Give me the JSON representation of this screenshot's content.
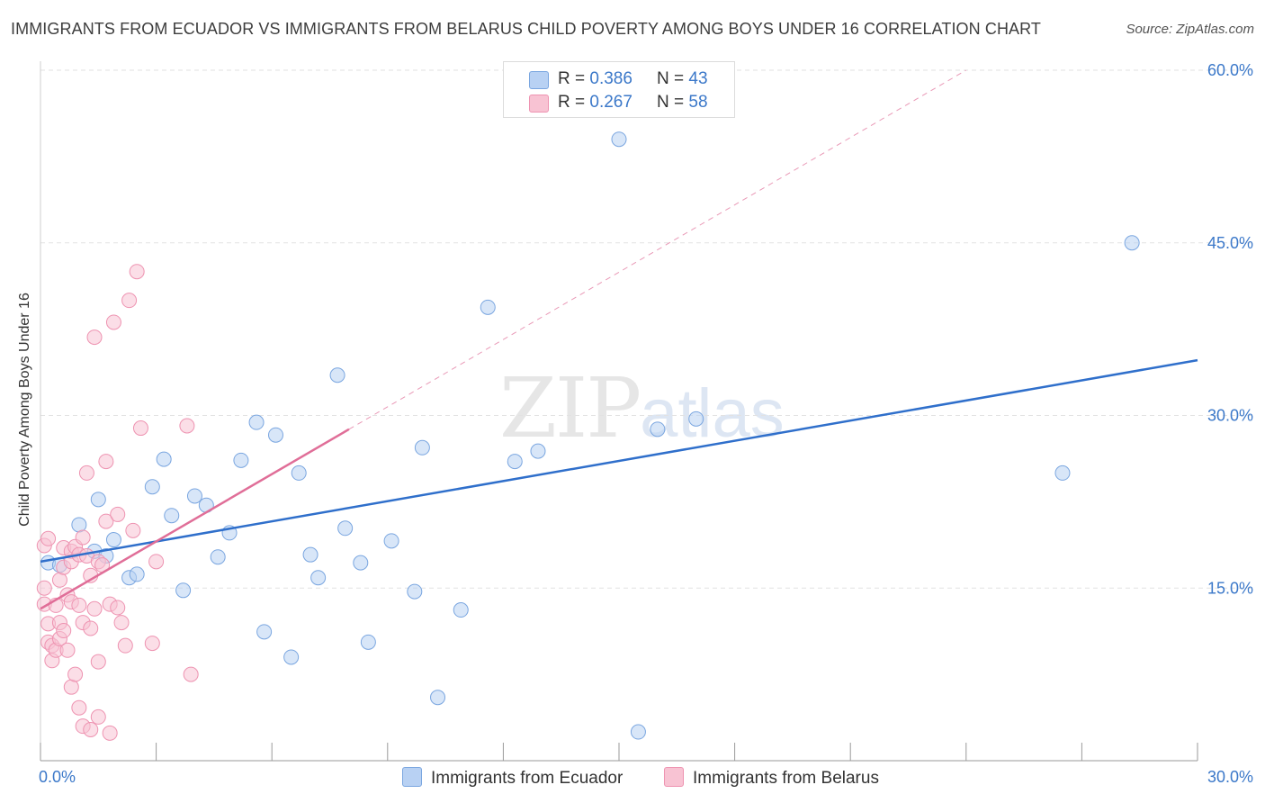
{
  "header": {
    "title": "IMMIGRANTS FROM ECUADOR VS IMMIGRANTS FROM BELARUS CHILD POVERTY AMONG BOYS UNDER 16 CORRELATION CHART",
    "source": "Source: ZipAtlas.com"
  },
  "watermark": {
    "zip": "ZIP",
    "atlas": "atlas"
  },
  "legend": {
    "ecuador": {
      "r_label": "R = ",
      "r_value": "0.386",
      "n_label": "N = ",
      "n_value": "43",
      "name": "Immigrants from Ecuador"
    },
    "belarus": {
      "r_label": "R = ",
      "r_value": "0.267",
      "n_label": "N = ",
      "n_value": "58",
      "name": "Immigrants from Belarus"
    }
  },
  "colors": {
    "ecuador_fill": "#b8d1f3",
    "ecuador_stroke": "#7aa6e0",
    "ecuador_line": "#2f6fcb",
    "belarus_fill": "#f8c3d3",
    "belarus_stroke": "#ee93b1",
    "belarus_line": "#e06e98",
    "axis_label": "#3b78c9",
    "grid": "#e2e2e2"
  },
  "chart_data": {
    "type": "scatter",
    "title": "IMMIGRANTS FROM ECUADOR VS IMMIGRANTS FROM BELARUS CHILD POVERTY AMONG BOYS UNDER 16 CORRELATION CHART",
    "xlabel": "",
    "ylabel": "Child Poverty Among Boys Under 16",
    "xlim": [
      0,
      30
    ],
    "ylim": [
      0,
      60
    ],
    "x_tick_labels": [
      "0.0%",
      "30.0%"
    ],
    "y_ticks": [
      15,
      30,
      45,
      60
    ],
    "y_tick_labels": [
      "15.0%",
      "30.0%",
      "45.0%",
      "60.0%"
    ],
    "grid": true,
    "legend_position": "top-center",
    "series": [
      {
        "name": "Immigrants from Ecuador",
        "color": "#b8d1f3",
        "trend": {
          "x": [
            0,
            30
          ],
          "y": [
            17.3,
            34.8
          ],
          "style": "solid"
        },
        "points": [
          [
            0.2,
            17.2
          ],
          [
            0.5,
            17.0
          ],
          [
            1.0,
            20.5
          ],
          [
            1.4,
            18.2
          ],
          [
            1.5,
            22.7
          ],
          [
            1.7,
            17.8
          ],
          [
            1.9,
            19.2
          ],
          [
            2.3,
            15.9
          ],
          [
            2.5,
            16.2
          ],
          [
            2.9,
            23.8
          ],
          [
            3.2,
            26.2
          ],
          [
            3.4,
            21.3
          ],
          [
            3.7,
            14.8
          ],
          [
            4.0,
            23.0
          ],
          [
            4.3,
            22.2
          ],
          [
            4.6,
            17.7
          ],
          [
            4.9,
            19.8
          ],
          [
            5.2,
            26.1
          ],
          [
            5.6,
            29.4
          ],
          [
            5.8,
            11.2
          ],
          [
            6.1,
            28.3
          ],
          [
            6.5,
            9.0
          ],
          [
            6.7,
            25.0
          ],
          [
            7.0,
            17.9
          ],
          [
            7.2,
            15.9
          ],
          [
            7.7,
            33.5
          ],
          [
            7.9,
            20.2
          ],
          [
            8.3,
            17.2
          ],
          [
            8.5,
            10.3
          ],
          [
            9.1,
            19.1
          ],
          [
            9.7,
            14.7
          ],
          [
            9.9,
            27.2
          ],
          [
            10.3,
            5.5
          ],
          [
            10.9,
            13.1
          ],
          [
            11.6,
            39.4
          ],
          [
            12.3,
            26.0
          ],
          [
            12.9,
            26.9
          ],
          [
            15.0,
            54.0
          ],
          [
            15.5,
            2.5
          ],
          [
            16.0,
            28.8
          ],
          [
            17.0,
            29.7
          ],
          [
            26.5,
            25.0
          ],
          [
            28.3,
            45.0
          ]
        ]
      },
      {
        "name": "Immigrants from Belarus",
        "color": "#f8c3d3",
        "trend": {
          "x": [
            0,
            8.0
          ],
          "y": [
            13.2,
            28.8
          ],
          "style": "solid",
          "extension": {
            "x": [
              8.0,
              24.0
            ],
            "y": [
              28.8,
              60.0
            ],
            "style": "dashed"
          }
        },
        "points": [
          [
            0.1,
            18.7
          ],
          [
            0.1,
            15.0
          ],
          [
            0.1,
            13.6
          ],
          [
            0.2,
            19.3
          ],
          [
            0.2,
            11.9
          ],
          [
            0.2,
            10.3
          ],
          [
            0.3,
            10.0
          ],
          [
            0.3,
            8.7
          ],
          [
            0.4,
            13.5
          ],
          [
            0.4,
            9.6
          ],
          [
            0.5,
            10.6
          ],
          [
            0.5,
            12.0
          ],
          [
            0.5,
            15.7
          ],
          [
            0.6,
            16.8
          ],
          [
            0.6,
            11.3
          ],
          [
            0.6,
            18.5
          ],
          [
            0.7,
            14.4
          ],
          [
            0.7,
            9.6
          ],
          [
            0.8,
            18.2
          ],
          [
            0.8,
            13.8
          ],
          [
            0.8,
            17.3
          ],
          [
            0.8,
            6.4
          ],
          [
            0.9,
            7.5
          ],
          [
            0.9,
            18.6
          ],
          [
            1.0,
            4.6
          ],
          [
            1.0,
            17.9
          ],
          [
            1.0,
            13.5
          ],
          [
            1.1,
            19.4
          ],
          [
            1.1,
            12.0
          ],
          [
            1.1,
            3.0
          ],
          [
            1.2,
            25.0
          ],
          [
            1.2,
            17.8
          ],
          [
            1.3,
            2.7
          ],
          [
            1.3,
            11.5
          ],
          [
            1.3,
            16.1
          ],
          [
            1.4,
            13.2
          ],
          [
            1.4,
            36.8
          ],
          [
            1.5,
            3.8
          ],
          [
            1.5,
            17.3
          ],
          [
            1.5,
            8.6
          ],
          [
            1.6,
            17.0
          ],
          [
            1.7,
            20.8
          ],
          [
            1.7,
            26.0
          ],
          [
            1.8,
            2.4
          ],
          [
            1.8,
            13.6
          ],
          [
            1.9,
            38.1
          ],
          [
            2.0,
            13.3
          ],
          [
            2.0,
            21.4
          ],
          [
            2.1,
            12.0
          ],
          [
            2.2,
            10.0
          ],
          [
            2.3,
            40.0
          ],
          [
            2.4,
            20.0
          ],
          [
            2.5,
            42.5
          ],
          [
            2.6,
            28.9
          ],
          [
            2.9,
            10.2
          ],
          [
            3.0,
            17.3
          ],
          [
            3.8,
            29.1
          ],
          [
            3.9,
            7.5
          ]
        ]
      }
    ]
  }
}
